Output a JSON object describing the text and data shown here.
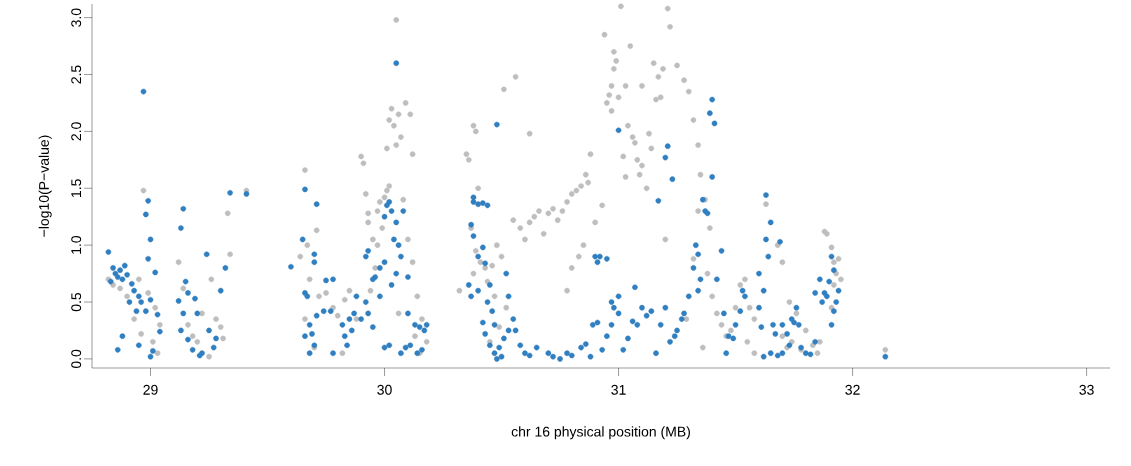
{
  "chart_data": {
    "type": "scatter",
    "xlabel": "chr 16 physical position (MB)",
    "ylabel": "−log10(P−value)",
    "xlim": [
      28.75,
      33.1
    ],
    "ylim": [
      -0.08,
      3.12
    ],
    "xticks": [
      29,
      30,
      31,
      32,
      33
    ],
    "yticks": [
      {
        "value": 0,
        "label": "0.0"
      },
      {
        "value": 0.5,
        "label": "0.5"
      },
      {
        "value": 1,
        "label": "1.0"
      },
      {
        "value": 1.5,
        "label": "1.5"
      },
      {
        "value": 2,
        "label": "2.0"
      },
      {
        "value": 2.5,
        "label": "2.5"
      },
      {
        "value": 3,
        "label": "3.0"
      }
    ],
    "marker": "circle",
    "series": [
      {
        "color": "#bebebe",
        "x": [
          28.82,
          28.84,
          28.87,
          28.9,
          28.97,
          28.99,
          29.02,
          29.04,
          28.93,
          28.96,
          29.01,
          29.03,
          28.95,
          29.12,
          29.14,
          29.16,
          29.18,
          29.2,
          29.22,
          29.26,
          29.28,
          29.3,
          29.31,
          29.33,
          29.34,
          29.41,
          29.25,
          29.66,
          29.67,
          29.71,
          29.64,
          29.68,
          29.66,
          29.7,
          29.72,
          29.75,
          29.78,
          29.8,
          29.83,
          29.85,
          29.88,
          29.82,
          29.9,
          29.91,
          29.93,
          29.92,
          29.95,
          29.96,
          29.93,
          29.97,
          29.98,
          30.0,
          30.01,
          30.02,
          29.99,
          29.97,
          29.94,
          30.05,
          30.02,
          30.03,
          30.04,
          30.06,
          30.07,
          30.05,
          30.01,
          30.09,
          30.11,
          30.12,
          30.08,
          30.1,
          30.12,
          30.14,
          30.16,
          30.13,
          30.18,
          30.15,
          30.06,
          30.32,
          30.35,
          30.36,
          30.38,
          30.39,
          30.4,
          30.37,
          30.39,
          30.41,
          30.43,
          30.38,
          30.44,
          30.46,
          30.48,
          30.5,
          30.52,
          30.47,
          30.49,
          30.45,
          30.51,
          30.56,
          30.55,
          30.58,
          30.6,
          30.62,
          30.64,
          30.66,
          30.68,
          30.7,
          30.72,
          30.62,
          30.74,
          30.76,
          30.78,
          30.8,
          30.82,
          30.84,
          30.86,
          30.88,
          30.87,
          30.85,
          30.83,
          30.78,
          30.8,
          30.9,
          30.93,
          30.96,
          30.97,
          30.98,
          30.99,
          31.0,
          30.95,
          30.97,
          31.01,
          31.05,
          30.94,
          30.98,
          31.03,
          31.04,
          31.06,
          31.07,
          31.08,
          31.09,
          31.1,
          31.02,
          31.03,
          31.12,
          31.13,
          31.14,
          31.16,
          31.18,
          31.1,
          31.15,
          31.17,
          31.19,
          31.21,
          31.22,
          31.25,
          31.28,
          31.3,
          31.32,
          31.34,
          31.35,
          31.37,
          31.39,
          31.29,
          31.32,
          31.34,
          31.38,
          31.4,
          31.42,
          31.44,
          31.46,
          31.48,
          31.5,
          31.52,
          31.54,
          31.56,
          31.58,
          31.55,
          31.58,
          31.2,
          31.36,
          31.63,
          31.68,
          31.7,
          31.73,
          31.76,
          31.7,
          31.72,
          31.74,
          31.78,
          31.8,
          31.83,
          31.86,
          31.85,
          31.88,
          31.89,
          31.91,
          31.92,
          31.93,
          31.94,
          31.92,
          31.95,
          31.91,
          32.14
        ],
        "values": [
          0.7,
          0.65,
          0.62,
          0.55,
          1.48,
          0.58,
          0.45,
          0.3,
          0.35,
          0.22,
          0.15,
          0.05,
          0.7,
          0.85,
          0.62,
          0.3,
          0.2,
          0.15,
          0.4,
          0.7,
          0.35,
          0.28,
          0.18,
          1.28,
          0.92,
          1.48,
          0.02,
          1.66,
          1.0,
          1.13,
          0.9,
          0.7,
          0.35,
          0.1,
          0.55,
          0.58,
          0.45,
          0.38,
          0.52,
          0.6,
          0.35,
          0.05,
          1.78,
          1.72,
          1.28,
          1.45,
          1.05,
          0.8,
          1.2,
          1.3,
          1.38,
          1.42,
          1.48,
          1.52,
          1.15,
          1.0,
          0.6,
          2.98,
          2.1,
          2.2,
          2.05,
          2.15,
          1.95,
          1.88,
          1.85,
          2.25,
          2.15,
          1.8,
          1.4,
          1.05,
          0.85,
          0.55,
          0.35,
          0.2,
          0.15,
          0.05,
          0.4,
          0.6,
          1.8,
          1.75,
          2.05,
          2.0,
          1.5,
          1.15,
          0.95,
          0.85,
          0.8,
          0.75,
          0.68,
          0.82,
          1.0,
          0.9,
          0.45,
          0.55,
          0.28,
          0.15,
          2.37,
          2.48,
          1.22,
          1.15,
          1.05,
          1.2,
          1.25,
          1.3,
          1.1,
          1.28,
          1.32,
          1.98,
          1.22,
          1.3,
          1.38,
          1.45,
          1.48,
          1.52,
          1.62,
          1.8,
          1.55,
          1.0,
          0.9,
          0.6,
          0.8,
          1.2,
          1.35,
          2.32,
          2.4,
          2.55,
          2.62,
          2.3,
          2.25,
          2.18,
          3.1,
          2.75,
          2.85,
          2.7,
          2.4,
          2.05,
          1.95,
          1.9,
          1.75,
          1.62,
          1.7,
          1.78,
          1.6,
          1.5,
          1.98,
          1.85,
          2.28,
          2.3,
          2.4,
          2.6,
          2.48,
          2.55,
          3.08,
          2.92,
          2.58,
          2.45,
          2.35,
          2.1,
          1.88,
          1.62,
          1.4,
          1.15,
          0.35,
          0.88,
          1.3,
          0.75,
          0.55,
          0.4,
          0.3,
          0.2,
          0.25,
          0.45,
          0.65,
          0.7,
          0.45,
          0.35,
          0.15,
          0.05,
          1.05,
          0.1,
          1.36,
          1.0,
          0.85,
          0.5,
          0.4,
          0.2,
          0.1,
          0.15,
          0.08,
          0.25,
          0.12,
          0.15,
          0.05,
          1.12,
          1.1,
          0.98,
          0.85,
          0.75,
          0.88,
          0.65,
          0.7,
          0.45,
          0.08
        ]
      },
      {
        "color": "#2f7fc1",
        "x": [
          28.82,
          28.84,
          28.85,
          28.86,
          28.87,
          28.88,
          28.89,
          28.83,
          28.9,
          28.92,
          28.86,
          28.88,
          28.93,
          28.95,
          28.97,
          28.98,
          28.99,
          29.0,
          29.02,
          28.99,
          28.96,
          28.98,
          29.0,
          29.03,
          29.04,
          28.95,
          29.01,
          29.0,
          28.91,
          28.94,
          29.14,
          29.13,
          29.12,
          29.15,
          29.16,
          29.14,
          29.13,
          29.16,
          29.18,
          29.21,
          29.22,
          29.2,
          29.19,
          29.24,
          29.25,
          29.27,
          29.28,
          29.3,
          29.32,
          29.34,
          29.41,
          29.66,
          29.71,
          29.6,
          29.66,
          29.67,
          29.68,
          29.69,
          29.7,
          29.68,
          29.66,
          29.71,
          29.74,
          29.65,
          29.7,
          29.7,
          29.75,
          29.78,
          29.77,
          29.82,
          29.85,
          29.87,
          29.86,
          29.83,
          29.84,
          29.78,
          29.88,
          29.9,
          29.92,
          29.92,
          29.93,
          29.95,
          29.96,
          29.98,
          30.0,
          29.98,
          29.93,
          29.95,
          30.0,
          30.01,
          30.02,
          30.03,
          30.05,
          30.04,
          30.06,
          30.08,
          30.03,
          30.05,
          30.07,
          30.05,
          30.1,
          30.09,
          30.0,
          30.02,
          30.07,
          30.11,
          30.13,
          30.15,
          30.17,
          30.18,
          30.16,
          30.14,
          30.1,
          30.38,
          30.38,
          30.4,
          30.42,
          30.44,
          30.37,
          30.38,
          30.4,
          30.42,
          30.43,
          30.36,
          30.37,
          30.4,
          30.42,
          30.45,
          30.44,
          30.46,
          30.47,
          30.43,
          30.45,
          30.47,
          30.48,
          30.5,
          30.49,
          30.51,
          30.53,
          30.55,
          30.48,
          30.52,
          30.53,
          30.56,
          30.58,
          30.6,
          30.62,
          30.65,
          30.7,
          30.72,
          30.75,
          30.78,
          30.8,
          30.84,
          30.86,
          30.88,
          30.9,
          30.91,
          30.89,
          30.92,
          30.95,
          30.97,
          30.98,
          31.0,
          31.0,
          31.21,
          31.2,
          31.23,
          31.17,
          31.4,
          31.39,
          31.41,
          31.4,
          31.36,
          31.37,
          31.38,
          31.33,
          31.34,
          31.35,
          31.32,
          31.34,
          31.3,
          31.28,
          31.27,
          31.25,
          31.24,
          31.22,
          31.2,
          31.18,
          31.16,
          31.14,
          31.12,
          31.1,
          31.08,
          31.06,
          31.04,
          31.02,
          31.0,
          30.97,
          30.95,
          30.93,
          30.91,
          31.07,
          31.44,
          31.42,
          31.45,
          31.47,
          31.46,
          31.49,
          31.5,
          31.52,
          31.53,
          31.54,
          31.63,
          31.65,
          31.63,
          31.69,
          31.64,
          31.6,
          31.62,
          31.6,
          31.61,
          31.66,
          31.67,
          31.7,
          31.72,
          31.74,
          31.75,
          31.76,
          31.77,
          31.73,
          31.7,
          31.68,
          31.65,
          31.62,
          31.78,
          31.8,
          31.82,
          31.84,
          31.84,
          31.86,
          31.87,
          31.88,
          31.89,
          31.91,
          31.92,
          31.9,
          31.92,
          31.93,
          31.94,
          31.91,
          32.14
        ],
        "values": [
          0.94,
          0.8,
          0.75,
          0.72,
          0.78,
          0.7,
          0.82,
          0.68,
          0.74,
          0.66,
          0.08,
          0.2,
          0.6,
          0.55,
          2.35,
          1.27,
          1.39,
          1.05,
          0.76,
          0.88,
          0.5,
          0.42,
          0.52,
          0.39,
          0.24,
          0.12,
          0.07,
          0.02,
          0.5,
          0.42,
          1.32,
          1.15,
          0.51,
          0.68,
          0.58,
          0.4,
          0.25,
          0.17,
          0.08,
          0.03,
          0.05,
          0.4,
          0.53,
          0.92,
          0.25,
          0.1,
          0.18,
          0.6,
          0.8,
          1.46,
          1.45,
          1.49,
          1.36,
          0.81,
          0.58,
          0.55,
          0.3,
          0.22,
          0.12,
          0.05,
          0.2,
          0.38,
          0.42,
          1.05,
          0.92,
          0.85,
          0.69,
          0.7,
          0.42,
          0.3,
          0.35,
          0.4,
          0.25,
          0.2,
          0.12,
          0.05,
          0.55,
          0.35,
          0.5,
          0.9,
          0.95,
          0.7,
          0.72,
          0.8,
          0.85,
          0.55,
          0.4,
          0.28,
          1.25,
          1.35,
          1.38,
          1.3,
          1.2,
          1.05,
          1.0,
          1.3,
          0.65,
          0.75,
          0.9,
          2.6,
          0.72,
          0.1,
          0.1,
          0.12,
          0.05,
          0.12,
          0.3,
          0.28,
          0.25,
          0.3,
          0.08,
          0.05,
          0.4,
          1.42,
          1.38,
          1.36,
          1.37,
          1.35,
          1.18,
          1.08,
          0.9,
          0.98,
          0.84,
          0.65,
          0.55,
          0.6,
          0.32,
          0.65,
          0.5,
          0.42,
          0.3,
          0.22,
          0.12,
          0.05,
          0.0,
          0.02,
          0.1,
          0.18,
          0.25,
          0.35,
          2.06,
          0.75,
          0.55,
          0.25,
          0.12,
          0.05,
          0.03,
          0.1,
          0.05,
          0.02,
          0.0,
          0.05,
          0.03,
          0.1,
          0.13,
          0.02,
          0.9,
          0.85,
          0.3,
          0.9,
          0.88,
          0.5,
          0.45,
          0.4,
          2.01,
          1.87,
          1.77,
          1.58,
          1.39,
          2.28,
          2.16,
          2.07,
          1.6,
          1.4,
          1.3,
          1.28,
          1.0,
          0.92,
          0.7,
          0.8,
          0.6,
          0.55,
          0.4,
          0.35,
          0.25,
          0.2,
          0.15,
          0.45,
          0.3,
          0.05,
          0.42,
          0.38,
          0.45,
          0.3,
          0.33,
          0.18,
          0.08,
          0.55,
          0.3,
          0.2,
          0.08,
          0.32,
          0.63,
          0.95,
          0.7,
          0.4,
          0.2,
          0.05,
          0.18,
          0.3,
          0.42,
          0.6,
          0.55,
          1.44,
          1.2,
          1.05,
          1.03,
          0.9,
          0.75,
          0.6,
          0.45,
          0.28,
          0.3,
          0.22,
          0.3,
          0.22,
          0.35,
          0.32,
          0.45,
          0.3,
          0.12,
          0.05,
          0.03,
          0.05,
          0.02,
          0.1,
          0.05,
          0.04,
          0.15,
          0.58,
          0.7,
          0.5,
          0.58,
          0.55,
          0.9,
          0.78,
          0.68,
          0.42,
          0.5,
          0.6,
          0.3,
          0.02
        ]
      }
    ]
  }
}
